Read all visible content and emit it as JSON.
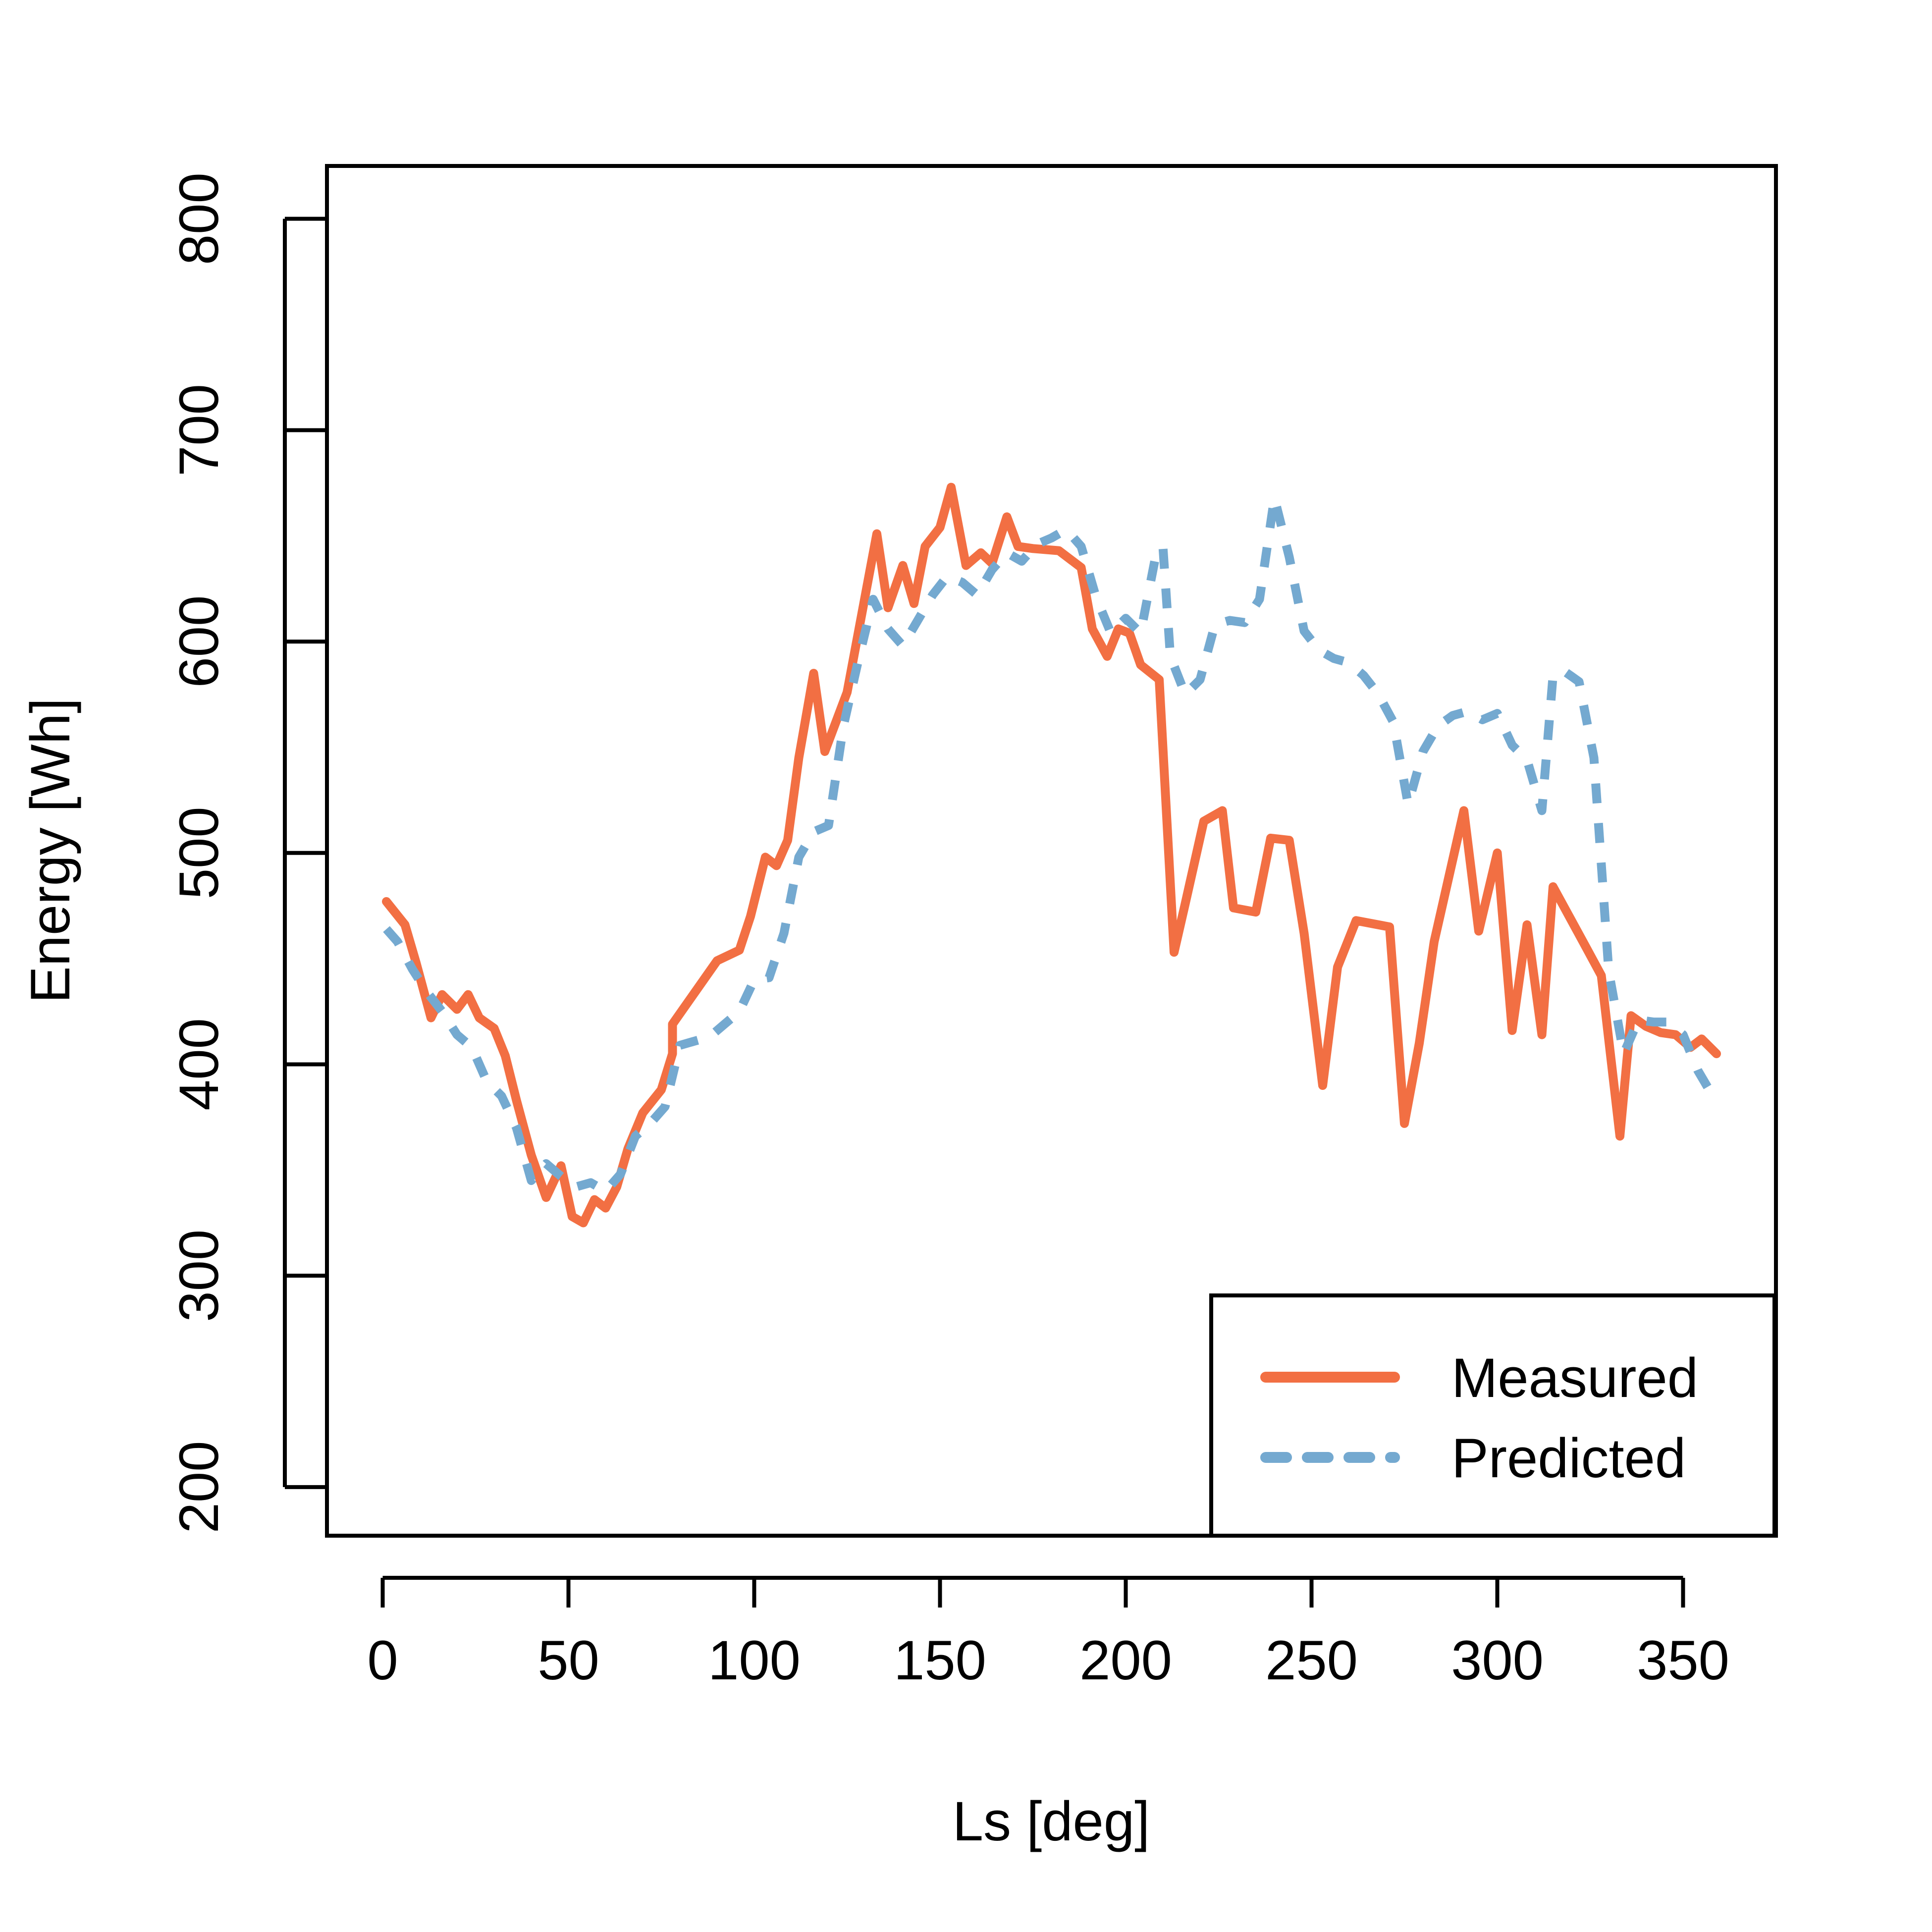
{
  "chart_data": {
    "type": "line",
    "title": "",
    "xlabel": "Ls [deg]",
    "ylabel": "Energy [Wh]",
    "xlim": [
      -15,
      375
    ],
    "ylim": [
      177,
      825
    ],
    "xticks": [
      0,
      50,
      100,
      150,
      200,
      250,
      300,
      350
    ],
    "yticks": [
      200,
      300,
      400,
      500,
      600,
      700,
      800
    ],
    "grid": false,
    "legend_position": "bottom-right",
    "series": [
      {
        "name": "Measured",
        "color": "#F26F43",
        "dash": "solid",
        "points": [
          [
            1,
            477
          ],
          [
            6,
            466
          ],
          [
            9,
            448
          ],
          [
            13,
            422
          ],
          [
            16,
            433
          ],
          [
            20,
            426
          ],
          [
            23,
            433
          ],
          [
            26,
            422
          ],
          [
            30,
            417
          ],
          [
            33,
            404
          ],
          [
            36,
            383
          ],
          [
            40,
            357
          ],
          [
            44,
            337
          ],
          [
            48,
            352
          ],
          [
            51,
            328
          ],
          [
            54,
            325
          ],
          [
            57,
            336
          ],
          [
            60,
            332
          ],
          [
            63,
            342
          ],
          [
            66,
            360
          ],
          [
            70,
            377
          ],
          [
            75,
            388
          ],
          [
            78,
            405
          ],
          [
            78,
            419
          ],
          [
            84,
            434
          ],
          [
            90,
            449
          ],
          [
            96,
            454
          ],
          [
            99,
            470
          ],
          [
            103,
            498
          ],
          [
            106,
            494
          ],
          [
            109,
            506
          ],
          [
            112,
            545
          ],
          [
            116,
            585
          ],
          [
            119,
            548
          ],
          [
            122,
            562
          ],
          [
            125,
            576
          ],
          [
            133,
            651
          ],
          [
            136,
            616
          ],
          [
            140,
            636
          ],
          [
            143,
            618
          ],
          [
            146,
            645
          ],
          [
            150,
            654
          ],
          [
            153,
            673
          ],
          [
            157,
            636
          ],
          [
            161,
            642
          ],
          [
            164,
            637
          ],
          [
            168,
            659
          ],
          [
            171,
            645
          ],
          [
            175,
            644
          ],
          [
            182,
            643
          ],
          [
            188,
            635
          ],
          [
            191,
            606
          ],
          [
            195,
            593
          ],
          [
            198,
            606
          ],
          [
            201,
            604
          ],
          [
            204,
            589
          ],
          [
            209,
            582
          ],
          [
            213,
            453
          ],
          [
            216,
            476
          ],
          [
            221,
            515
          ],
          [
            226,
            520
          ],
          [
            229,
            474
          ],
          [
            235,
            472
          ],
          [
            239,
            507
          ],
          [
            244,
            506
          ],
          [
            248,
            462
          ],
          [
            253,
            390
          ],
          [
            257,
            446
          ],
          [
            262,
            468
          ],
          [
            271,
            465
          ],
          [
            275,
            372
          ],
          [
            279,
            410
          ],
          [
            283,
            458
          ],
          [
            291,
            520
          ],
          [
            295,
            463
          ],
          [
            300,
            500
          ],
          [
            304,
            416
          ],
          [
            308,
            466
          ],
          [
            312,
            414
          ],
          [
            315,
            484
          ],
          [
            324,
            455
          ],
          [
            328,
            442
          ],
          [
            333,
            366
          ],
          [
            336,
            423
          ],
          [
            340,
            418
          ],
          [
            344,
            415
          ],
          [
            348,
            414
          ],
          [
            352,
            408
          ],
          [
            355,
            412
          ],
          [
            359,
            405
          ]
        ]
      },
      {
        "name": "Predicted",
        "color": "#74A9D0",
        "dash": "dashed",
        "points": [
          [
            1,
            464
          ],
          [
            4,
            458
          ],
          [
            8,
            445
          ],
          [
            12,
            434
          ],
          [
            16,
            425
          ],
          [
            20,
            414
          ],
          [
            24,
            408
          ],
          [
            28,
            392
          ],
          [
            32,
            385
          ],
          [
            36,
            370
          ],
          [
            40,
            345
          ],
          [
            44,
            353
          ],
          [
            48,
            347
          ],
          [
            52,
            342
          ],
          [
            56,
            344
          ],
          [
            60,
            340
          ],
          [
            64,
            348
          ],
          [
            68,
            366
          ],
          [
            72,
            372
          ],
          [
            76,
            380
          ],
          [
            80,
            409
          ],
          [
            84,
            411
          ],
          [
            88,
            413
          ],
          [
            92,
            419
          ],
          [
            96,
            425
          ],
          [
            100,
            440
          ],
          [
            104,
            441
          ],
          [
            108,
            462
          ],
          [
            112,
            498
          ],
          [
            116,
            510
          ],
          [
            120,
            513
          ],
          [
            124,
            560
          ],
          [
            128,
            591
          ],
          [
            132,
            620
          ],
          [
            136,
            606
          ],
          [
            140,
            598
          ],
          [
            144,
            610
          ],
          [
            148,
            622
          ],
          [
            152,
            631
          ],
          [
            156,
            628
          ],
          [
            160,
            622
          ],
          [
            164,
            634
          ],
          [
            168,
            642
          ],
          [
            172,
            638
          ],
          [
            176,
            646
          ],
          [
            180,
            649
          ],
          [
            184,
            653
          ],
          [
            188,
            645
          ],
          [
            192,
            621
          ],
          [
            196,
            604
          ],
          [
            200,
            611
          ],
          [
            204,
            604
          ],
          [
            208,
            640
          ],
          [
            210,
            645
          ],
          [
            212,
            593
          ],
          [
            216,
            575
          ],
          [
            220,
            582
          ],
          [
            224,
            608
          ],
          [
            228,
            610
          ],
          [
            232,
            609
          ],
          [
            236,
            620
          ],
          [
            240,
            668
          ],
          [
            244,
            640
          ],
          [
            248,
            605
          ],
          [
            252,
            596
          ],
          [
            256,
            592
          ],
          [
            260,
            590
          ],
          [
            264,
            584
          ],
          [
            268,
            575
          ],
          [
            272,
            562
          ],
          [
            276,
            523
          ],
          [
            280,
            548
          ],
          [
            284,
            560
          ],
          [
            288,
            565
          ],
          [
            292,
            567
          ],
          [
            296,
            563
          ],
          [
            300,
            566
          ],
          [
            304,
            551
          ],
          [
            308,
            544
          ],
          [
            312,
            520
          ],
          [
            315,
            584
          ],
          [
            318,
            586
          ],
          [
            322,
            581
          ],
          [
            326,
            545
          ],
          [
            330,
            444
          ],
          [
            334,
            405
          ],
          [
            338,
            421
          ],
          [
            342,
            420
          ],
          [
            346,
            420
          ],
          [
            350,
            414
          ],
          [
            354,
            397
          ],
          [
            358,
            385
          ]
        ]
      }
    ]
  }
}
